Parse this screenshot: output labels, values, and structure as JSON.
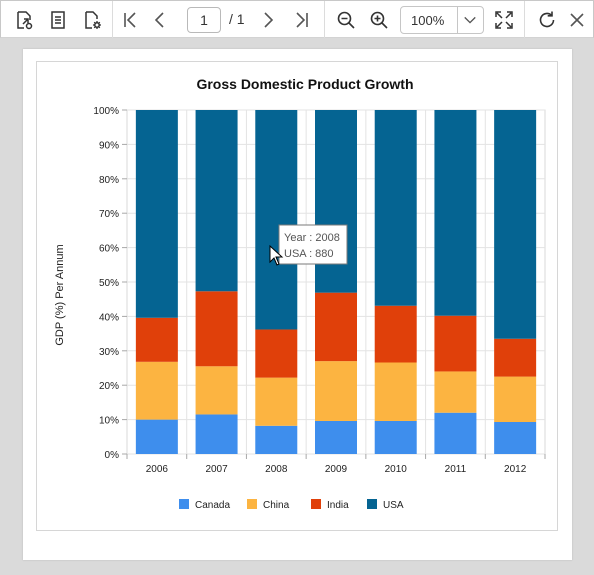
{
  "toolbar": {
    "page_current": "1",
    "page_total": "/ 1",
    "zoom_value": "100%"
  },
  "icons": {
    "export": "export-icon",
    "document": "document-icon",
    "page_setup": "page-setup-icon",
    "first": "first-page-icon",
    "prev": "previous-page-icon",
    "next": "next-page-icon",
    "last": "last-page-icon",
    "zoom_out": "zoom-out-icon",
    "zoom_in": "zoom-in-icon",
    "fit": "fit-page-icon",
    "refresh": "refresh-icon",
    "close": "close-icon"
  },
  "chart_data": {
    "type": "bar",
    "stacked": "100%",
    "title": "Gross Domestic Product Growth",
    "xlabel": "",
    "ylabel": "GDP (%) Per Annum",
    "ylim": [
      0,
      100
    ],
    "yticks": [
      "0%",
      "10%",
      "20%",
      "30%",
      "40%",
      "50%",
      "60%",
      "70%",
      "80%",
      "90%",
      "100%"
    ],
    "categories": [
      "2006",
      "2007",
      "2008",
      "2009",
      "2010",
      "2011",
      "2012"
    ],
    "series": [
      {
        "name": "Canada",
        "color": "#3e8eed",
        "values": [
          10.0,
          11.5,
          8.2,
          9.6,
          9.6,
          12.0,
          9.3
        ]
      },
      {
        "name": "China",
        "color": "#fcb441",
        "values": [
          16.8,
          14.0,
          14.0,
          17.4,
          17.0,
          12.0,
          13.2
        ]
      },
      {
        "name": "India",
        "color": "#e0400a",
        "values": [
          12.8,
          21.8,
          14.0,
          19.9,
          16.5,
          16.2,
          11.0
        ]
      },
      {
        "name": "USA",
        "color": "#056492",
        "values": [
          60.4,
          52.7,
          63.8,
          53.1,
          56.9,
          59.8,
          66.5
        ]
      }
    ],
    "legend": "bottom",
    "grid": true,
    "tooltip": {
      "year_label": "Year : 2008",
      "value_label": "USA : 880"
    }
  }
}
